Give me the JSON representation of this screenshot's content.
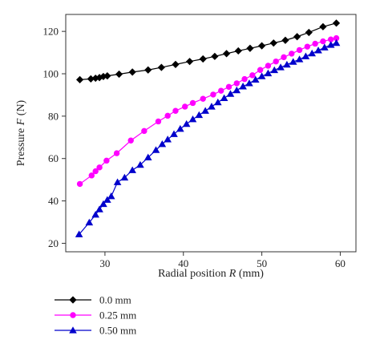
{
  "chart_data": {
    "type": "line",
    "xlabel": {
      "prefix": "Radial position ",
      "var": "R",
      "suffix": " (mm)"
    },
    "ylabel": {
      "prefix": "Pressure ",
      "var": "F",
      "suffix": " (N)"
    },
    "xlim": [
      25,
      62
    ],
    "ylim": [
      16,
      128
    ],
    "xticks": [
      30,
      40,
      50,
      60
    ],
    "yticks": [
      20,
      40,
      60,
      80,
      100,
      120
    ],
    "grid": false,
    "legend_position": "bottom-left",
    "series": [
      {
        "name": "0.0 mm",
        "color": "#000000",
        "marker": "diamond",
        "x": [
          26.8,
          28.2,
          28.8,
          29.3,
          29.8,
          30.3,
          31.8,
          33.5,
          35.5,
          37.2,
          39.0,
          40.8,
          42.5,
          44.0,
          45.5,
          47.0,
          48.5,
          50.0,
          51.5,
          53.0,
          54.5,
          56.0,
          57.8,
          59.5
        ],
        "y": [
          97.2,
          97.6,
          97.9,
          98.2,
          98.7,
          99.0,
          99.8,
          100.8,
          101.8,
          103.0,
          104.4,
          105.8,
          107.0,
          108.2,
          109.5,
          110.8,
          112.0,
          113.2,
          114.5,
          115.8,
          117.5,
          119.5,
          122.2,
          123.9
        ]
      },
      {
        "name": "0.25 mm",
        "color": "#ff00ff",
        "marker": "circle",
        "x": [
          26.8,
          28.3,
          28.8,
          29.3,
          30.2,
          31.5,
          33.3,
          35.0,
          36.8,
          38.0,
          39.0,
          40.2,
          41.2,
          42.5,
          43.8,
          44.8,
          45.8,
          46.8,
          47.8,
          48.8,
          49.8,
          50.8,
          51.8,
          52.8,
          53.8,
          54.8,
          55.8,
          56.8,
          57.8,
          58.8,
          59.5
        ],
        "y": [
          48.0,
          52.0,
          54.0,
          55.8,
          59.0,
          62.5,
          68.5,
          73.0,
          77.5,
          80.2,
          82.5,
          84.5,
          86.2,
          88.2,
          90.2,
          92.0,
          93.8,
          95.5,
          97.5,
          99.3,
          101.8,
          103.8,
          105.8,
          107.8,
          109.5,
          111.2,
          112.8,
          114.2,
          115.3,
          116.2,
          116.8
        ]
      },
      {
        "name": "0.50 mm",
        "color": "#0000cc",
        "marker": "triangle",
        "x": [
          26.7,
          28.0,
          28.8,
          29.3,
          29.8,
          30.3,
          30.8,
          31.6,
          32.5,
          33.5,
          34.5,
          35.5,
          36.5,
          37.3,
          38.0,
          38.8,
          39.6,
          40.4,
          41.2,
          42.0,
          42.8,
          43.6,
          44.4,
          45.2,
          46.0,
          46.8,
          47.6,
          48.4,
          49.2,
          50.0,
          50.8,
          51.6,
          52.4,
          53.2,
          54.0,
          54.8,
          55.6,
          56.4,
          57.2,
          58.0,
          58.8,
          59.5
        ],
        "y": [
          24.2,
          29.8,
          33.5,
          36.0,
          38.5,
          40.5,
          42.2,
          48.8,
          51.0,
          54.5,
          57.0,
          60.5,
          64.0,
          66.8,
          69.0,
          71.5,
          74.0,
          76.3,
          78.5,
          80.5,
          82.5,
          84.5,
          86.5,
          88.5,
          90.5,
          92.2,
          94.0,
          95.5,
          97.2,
          98.8,
          100.2,
          101.7,
          103.0,
          104.3,
          105.6,
          106.8,
          108.2,
          109.6,
          111.0,
          112.4,
          113.6,
          114.5
        ]
      }
    ]
  }
}
